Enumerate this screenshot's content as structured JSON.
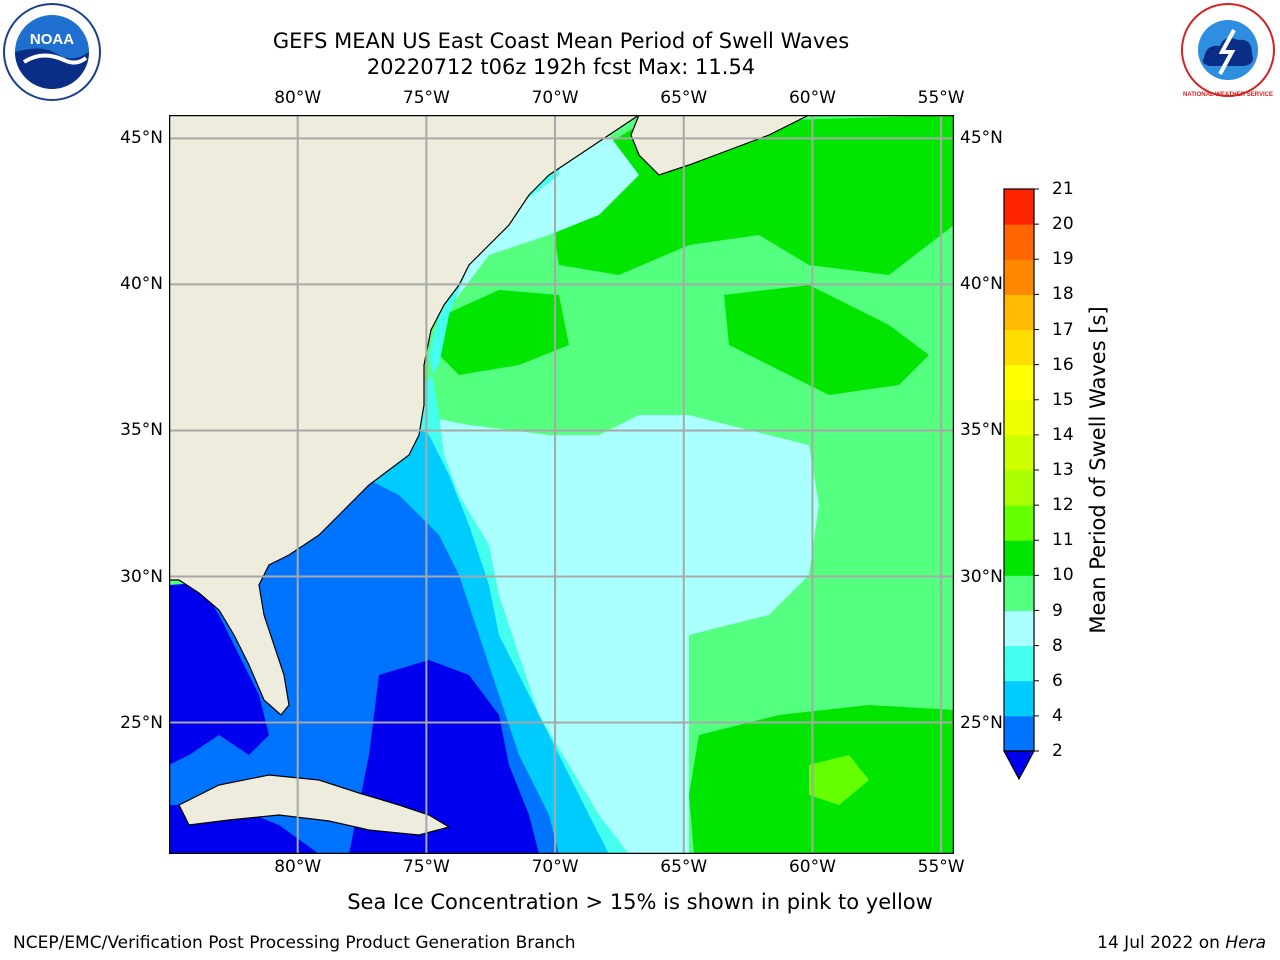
{
  "header": {
    "title": "GEFS MEAN US East Coast Mean Period of Swell Waves",
    "subtitle": "20220712 t06z 192h fcst   Max: 11.54"
  },
  "logos": {
    "noaa": {
      "text": "NOAA"
    },
    "nws": {
      "text": "NATIONAL WEATHER SERVICE"
    }
  },
  "map": {
    "lon_ticks": [
      {
        "label": "80°W",
        "lon": -80
      },
      {
        "label": "75°W",
        "lon": -75
      },
      {
        "label": "70°W",
        "lon": -70
      },
      {
        "label": "65°W",
        "lon": -65
      },
      {
        "label": "60°W",
        "lon": -60
      },
      {
        "label": "55°W",
        "lon": -55
      }
    ],
    "lat_ticks": [
      {
        "label": "45°N",
        "lat": 45
      },
      {
        "label": "40°N",
        "lat": 40
      },
      {
        "label": "35°N",
        "lat": 35
      },
      {
        "label": "30°N",
        "lat": 30
      },
      {
        "label": "25°N",
        "lat": 25
      }
    ],
    "extent": {
      "lon_min": -85,
      "lon_max": -54.5,
      "lat_min": 20.5,
      "lat_max": 45.8
    },
    "land_color": "#eeeddd",
    "ocean_base_color": "#55ff7f"
  },
  "colorbar": {
    "title": "Mean Period of Swell Waves [s]",
    "ticks": [
      "2",
      "4",
      "6",
      "8",
      "9",
      "10",
      "11",
      "12",
      "13",
      "14",
      "15",
      "16",
      "17",
      "18",
      "19",
      "20",
      "21"
    ],
    "colors": [
      "#0074ff",
      "#00ccff",
      "#44ffee",
      "#aaffff",
      "#55ff7f",
      "#00e600",
      "#66ff00",
      "#aaff00",
      "#ccff00",
      "#eeff00",
      "#ffff00",
      "#ffdd00",
      "#ffbb00",
      "#ff8800",
      "#ff6600",
      "#ff2200"
    ],
    "under_color": "#0000ee"
  },
  "footer": {
    "note": "Sea Ice Concentration > 15% is shown in pink to yellow",
    "left": "NCEP/EMC/Verification Post Processing Product Generation Branch",
    "right_prefix": "14 Jul 2022 on ",
    "right_host": "Hera"
  }
}
